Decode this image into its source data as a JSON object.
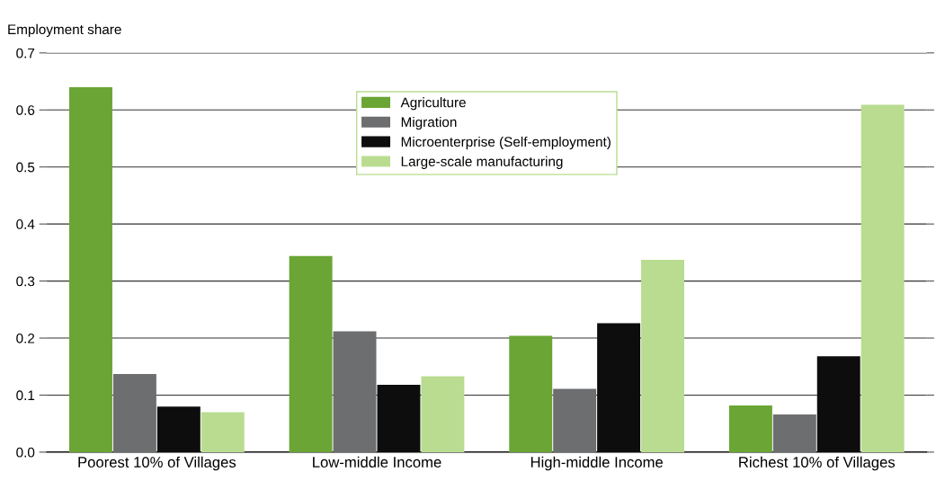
{
  "chart_data": {
    "type": "bar",
    "ylabel": "Employment share",
    "categories": [
      "Poorest 10% of Villages",
      "Low-middle Income",
      "High-middle Income",
      "Richest 10% of Villages"
    ],
    "series": [
      {
        "name": "Agriculture",
        "color": "#6aa535",
        "values": [
          0.64,
          0.344,
          0.204,
          0.082
        ]
      },
      {
        "name": "Migration",
        "color": "#6d6e70",
        "values": [
          0.137,
          0.212,
          0.111,
          0.066
        ]
      },
      {
        "name": "Microenterprise (Self-employment)",
        "color": "#0d0d0d",
        "values": [
          0.08,
          0.118,
          0.226,
          0.168
        ]
      },
      {
        "name": "Large-scale manufacturing",
        "color": "#b9dc90",
        "values": [
          0.07,
          0.133,
          0.337,
          0.609
        ]
      }
    ],
    "ylim": [
      0,
      0.7
    ],
    "yticks": [
      {
        "value": 0,
        "label": "0.0"
      },
      0.1,
      0.2,
      0.3,
      0.4,
      0.5,
      0.6,
      0.7
    ],
    "grid": "y",
    "legend": "top center"
  }
}
